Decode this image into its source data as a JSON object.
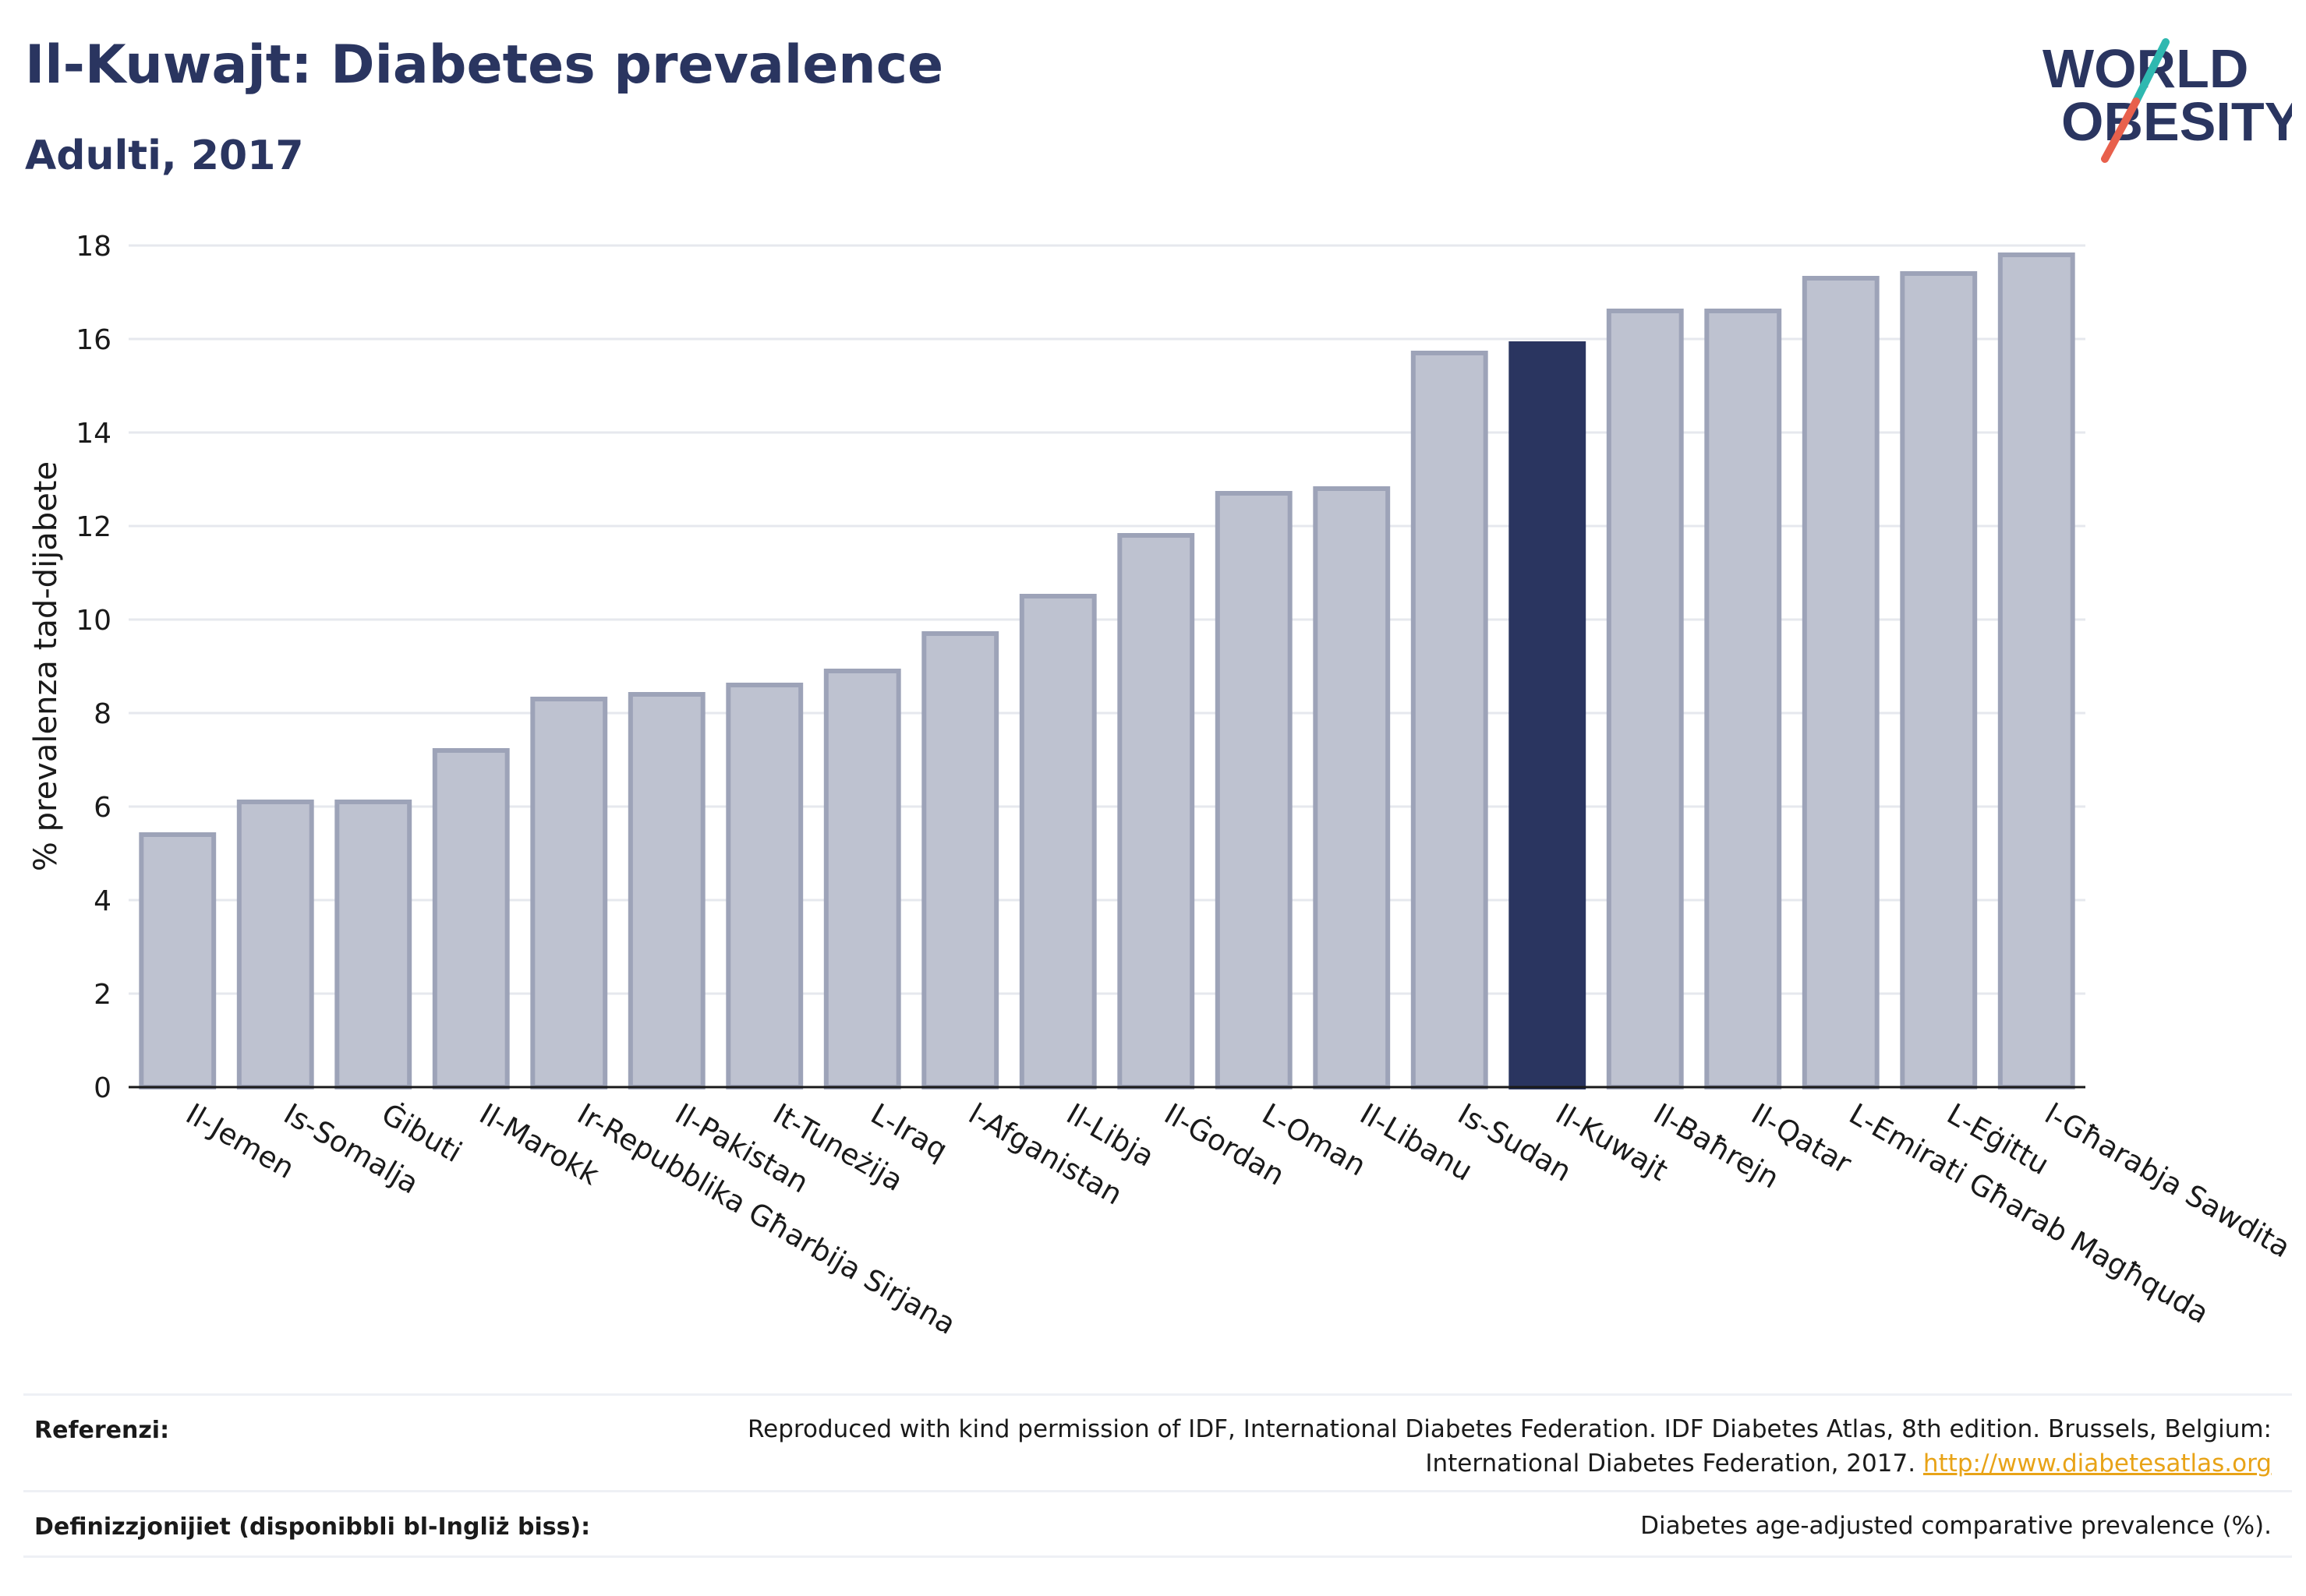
{
  "header": {
    "title": "Il-Kuwajt: Diabetes prevalence",
    "subtitle": "Adulti, 2017"
  },
  "logo": {
    "line1": "WORLD",
    "line2": "OBESITY",
    "icon": "world-obesity-logo",
    "slash_colors": [
      "#2fb8b0",
      "#e8604c"
    ]
  },
  "chart_data": {
    "type": "bar",
    "ylabel": "% prevalenza tad-dijabete",
    "xlabel": "",
    "ylim": [
      0,
      18
    ],
    "yticks": [
      0,
      2,
      4,
      6,
      8,
      10,
      12,
      14,
      16,
      18
    ],
    "grid": true,
    "categories": [
      "Il-Jemen",
      "Is-Somalja",
      "Ġibuti",
      "Il-Marokk",
      "Ir-Repubblika Għarbija Sirjana",
      "Il-Pakistan",
      "It-Tuneżija",
      "L-Iraq",
      "l-Afganistan",
      "Il-Libja",
      "Il-Ġordan",
      "L-Oman",
      "Il-Libanu",
      "Is-Sudan",
      "Il-Kuwajt",
      "Il-Baħrejn",
      "Il-Qatar",
      "L-Emirati Għarab Magħquda",
      "L-Eġittu",
      "l-Għarabja Sawdita"
    ],
    "values": [
      5.4,
      6.1,
      6.1,
      7.2,
      8.3,
      8.4,
      8.6,
      8.9,
      9.7,
      10.5,
      11.8,
      12.7,
      12.8,
      15.7,
      15.9,
      16.6,
      16.6,
      17.3,
      17.4,
      17.8
    ],
    "highlight": "Il-Kuwajt",
    "colors": {
      "bar": "#bec2d0",
      "bar_border": "#9da3b8",
      "highlight": "#2a3560",
      "axis": "#1a1a1a",
      "grid": "#e6e8ee"
    }
  },
  "footer": {
    "references_label": "Referenzi:",
    "references_text_1": "Reproduced with kind permission of IDF, International Diabetes Federation. IDF Diabetes Atlas, 8th edition. Brussels, Belgium:",
    "references_text_2": "International Diabetes Federation, 2017.",
    "references_link": "http://www.diabetesatlas.org",
    "definitions_label": "Definizzjonijiet (disponibbli bl-Ingliż biss):",
    "definitions_text": "Diabetes age-adjusted comparative prevalence (%)."
  }
}
